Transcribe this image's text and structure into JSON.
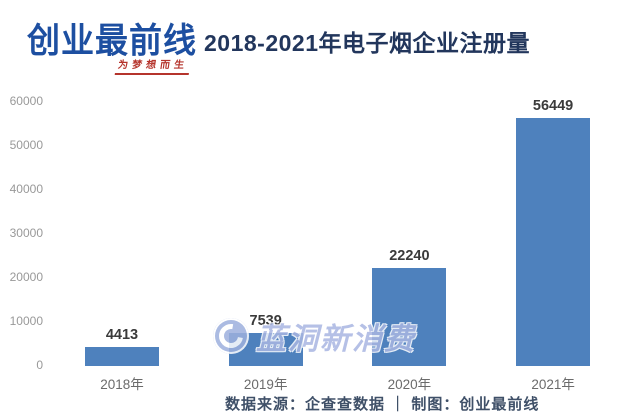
{
  "header": {
    "logo_text": "创业最前线",
    "logo_slogan": "为梦想而生",
    "title": "2018-2021年电子烟企业注册量"
  },
  "chart_data": {
    "type": "bar",
    "title": "2018-2021年电子烟企业注册量",
    "categories": [
      "2018年",
      "2019年",
      "2020年",
      "2021年"
    ],
    "values": [
      4413,
      7539,
      22240,
      56449
    ],
    "value_labels": [
      "4413",
      "7539",
      "22240",
      "56449"
    ],
    "ylabel": "",
    "xlabel": "",
    "ylim": [
      0,
      60000
    ],
    "yticks": [
      0,
      10000,
      20000,
      30000,
      40000,
      50000,
      60000
    ],
    "grid": false,
    "legend": "none",
    "bar_color": "#4e81bd"
  },
  "watermark": {
    "text": "蓝洞新消费",
    "icon": "blue-hole-logo-icon",
    "color": "#a9b6e2"
  },
  "footer": {
    "note": "数据来源：企查查数据 ｜ 制图：创业最前线"
  },
  "colors": {
    "logo_blue": "#1d4fa1",
    "slogan_red": "#b5342c",
    "title_navy": "#22365c",
    "bar_blue": "#4e81bd",
    "axis_gray": "#999999",
    "footer_slate": "#3f5068"
  }
}
